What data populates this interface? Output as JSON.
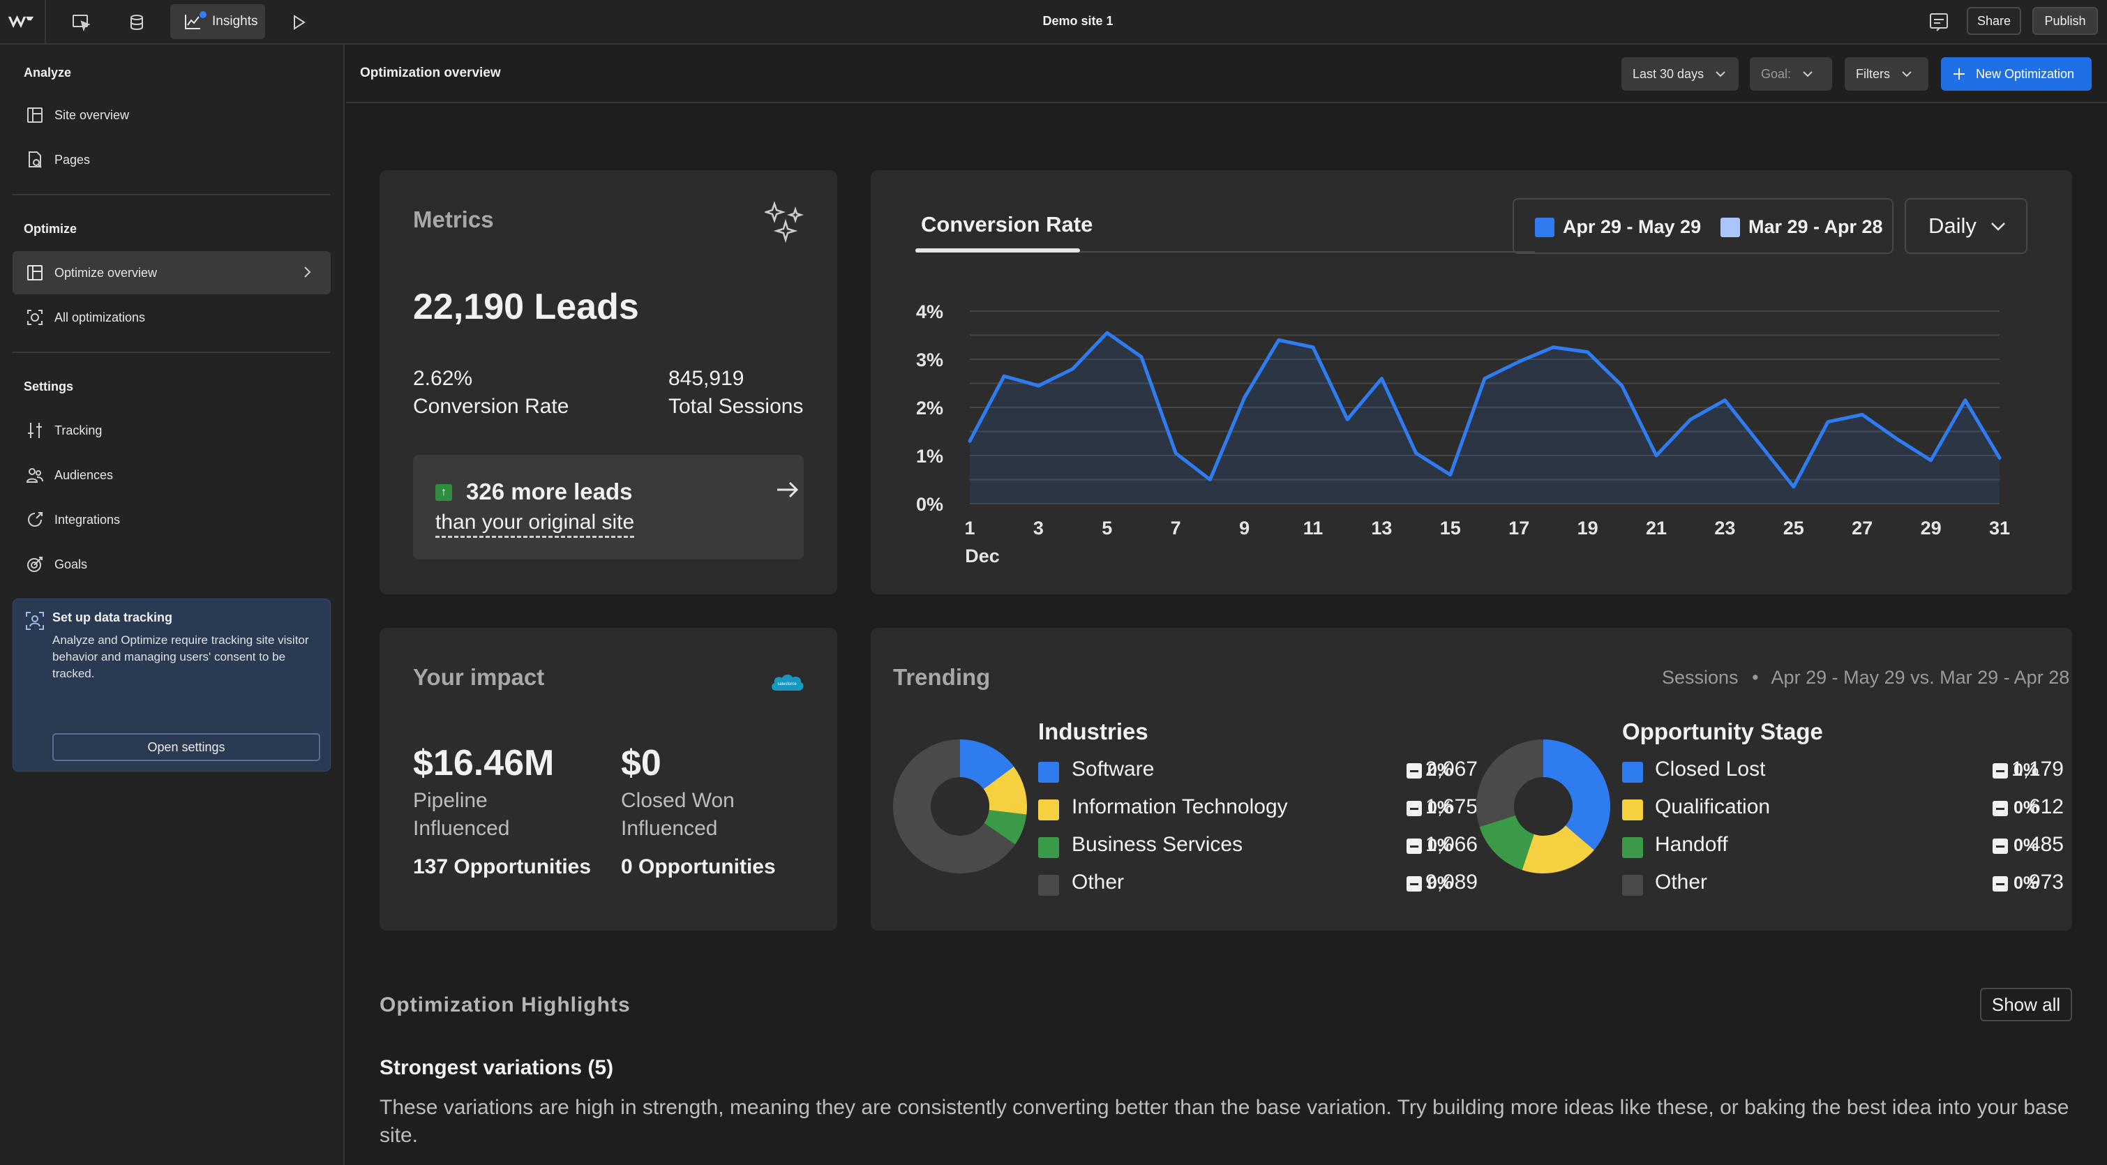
{
  "topbar": {
    "site_title": "Demo site 1",
    "insights_label": "Insights",
    "share_label": "Share",
    "publish_label": "Publish",
    "icons": [
      "webflow-logo-icon",
      "designer-icon",
      "cms-icon",
      "insights-icon",
      "play-icon",
      "comments-icon"
    ]
  },
  "sidebar": {
    "analyze_heading": "Analyze",
    "optimize_heading": "Optimize",
    "settings_heading": "Settings",
    "items": [
      {
        "label": "Site overview",
        "icon": "layout-icon"
      },
      {
        "label": "Pages",
        "icon": "pages-icon"
      },
      {
        "label": "Optimize overview",
        "icon": "layout-icon"
      },
      {
        "label": "All optimizations",
        "icon": "target-icon"
      },
      {
        "label": "Tracking",
        "icon": "tracking-icon"
      },
      {
        "label": "Audiences",
        "icon": "audiences-icon"
      },
      {
        "label": "Integrations",
        "icon": "integrations-icon"
      },
      {
        "label": "Goals",
        "icon": "goals-icon"
      }
    ],
    "tracking_card": {
      "title": "Set up data tracking",
      "body": "Analyze and Optimize require tracking site visitor behavior and managing users' consent to be tracked.",
      "button": "Open settings"
    }
  },
  "header": {
    "title": "Optimization overview",
    "date_range": "Last 30 days",
    "goal": "Goal:",
    "filters": "Filters",
    "new_optimization": "New Optimization"
  },
  "metrics": {
    "title": "Metrics",
    "leads": "22,190 Leads",
    "conversion_value": "2.62%",
    "conversion_label": "Conversion Rate",
    "sessions_value": "845,919",
    "sessions_label": "Total Sessions",
    "more_leads": "326 more leads",
    "more_leads_sub": "than your original site"
  },
  "conversion": {
    "tab": "Conversion Rate",
    "legend_current": "Apr 29 - May 29",
    "legend_previous": "Mar 29 - Apr 28",
    "granularity": "Daily",
    "colors": {
      "current": "#2f7bf0",
      "previous": "#a9c6ff"
    }
  },
  "chart_data": {
    "type": "area",
    "x": [
      1,
      2,
      3,
      4,
      5,
      6,
      7,
      8,
      9,
      10,
      11,
      12,
      13,
      14,
      15,
      16,
      17,
      18,
      19,
      20,
      21,
      22,
      23,
      24,
      25,
      26,
      27,
      28,
      29,
      30,
      31
    ],
    "x_tick_labels": [
      "1",
      "3",
      "5",
      "7",
      "9",
      "11",
      "13",
      "15",
      "17",
      "19",
      "21",
      "23",
      "25",
      "27",
      "29",
      "31"
    ],
    "x_sub_label": "Dec",
    "y_tick_labels": [
      "0%",
      "1%",
      "2%",
      "3%",
      "4%"
    ],
    "ylim": [
      0,
      4
    ],
    "grid": true,
    "series": [
      {
        "name": "Apr 29 - May 29",
        "values": [
          1.3,
          2.65,
          2.45,
          2.8,
          3.55,
          3.05,
          1.05,
          0.5,
          2.2,
          3.4,
          3.25,
          1.75,
          2.6,
          1.05,
          0.6,
          2.6,
          2.95,
          3.25,
          3.15,
          2.45,
          1.0,
          1.75,
          2.15,
          1.25,
          0.35,
          1.7,
          1.85,
          1.35,
          0.9,
          2.15,
          0.95
        ]
      }
    ]
  },
  "impact": {
    "title": "Your impact",
    "pipeline_value": "$16.46M",
    "pipeline_label": "Pipeline Influenced",
    "pipeline_opps": "137 Opportunities",
    "won_value": "$0",
    "won_label": "Closed Won Influenced",
    "won_opps": "0 Opportunities",
    "logo_text": "salesforce"
  },
  "trending": {
    "title": "Trending",
    "meta_sessions": "Sessions",
    "meta_compare": "Apr 29 - May 29 vs. Mar 29 - Apr 28",
    "industries": {
      "title": "Industries",
      "rows": [
        {
          "label": "Software",
          "value": "2,067",
          "change": "0%",
          "color": "#2f7bf0"
        },
        {
          "label": "Information Technology",
          "value": "1,675",
          "change": "0%",
          "color": "#f5d142"
        },
        {
          "label": "Business Services",
          "value": "1,066",
          "change": "0%",
          "color": "#3a9a48"
        },
        {
          "label": "Other",
          "value": "9,089",
          "change": "0%",
          "color": "#4a4a4a"
        }
      ]
    },
    "stages": {
      "title": "Opportunity Stage",
      "rows": [
        {
          "label": "Closed Lost",
          "value": "1,179",
          "change": "0%",
          "color": "#2f7bf0"
        },
        {
          "label": "Qualification",
          "value": "612",
          "change": "0%",
          "color": "#f5d142"
        },
        {
          "label": "Handoff",
          "value": "485",
          "change": "0%",
          "color": "#3a9a48"
        },
        {
          "label": "Other",
          "value": "973",
          "change": "0%",
          "color": "#4a4a4a"
        }
      ]
    }
  },
  "highlights": {
    "title": "Optimization Highlights",
    "show_all": "Show all",
    "strongest_title": "Strongest variations (5)",
    "strongest_body": "These variations are high in strength, meaning they are consistently converting better than the base variation. Try building more ideas like these, or baking the best idea into your base site."
  }
}
